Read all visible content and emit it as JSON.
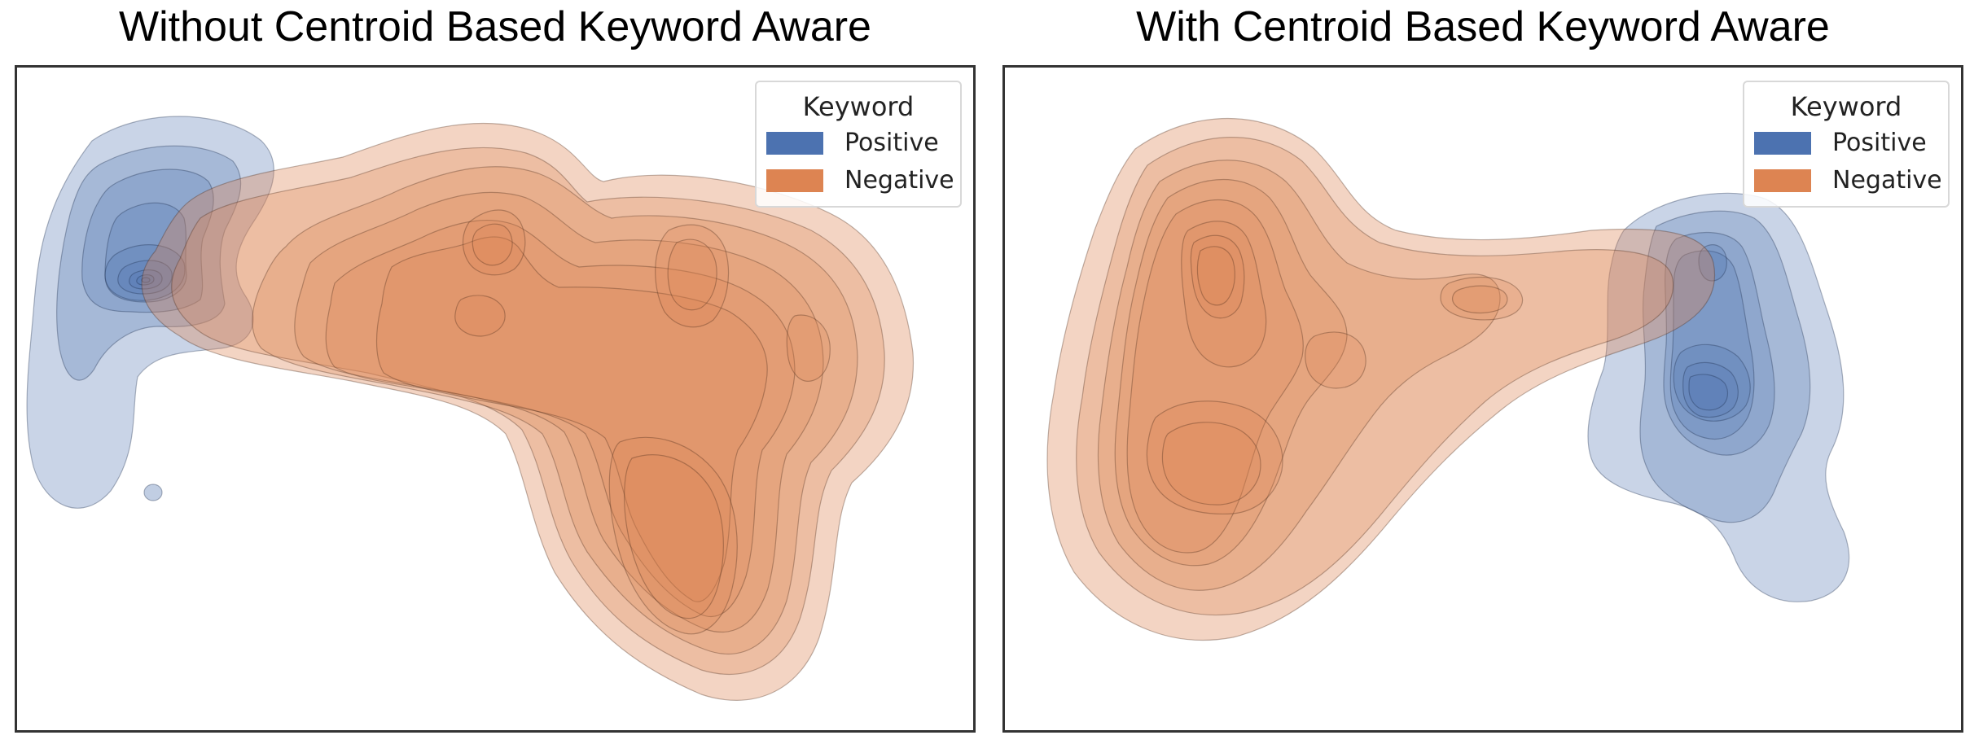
{
  "colors": {
    "positive": "#4c72b0",
    "negative": "#dd8452",
    "frame": "#333333"
  },
  "panels": [
    {
      "title": "Without Centroid Based Keyword Aware",
      "legend": {
        "title": "Keyword",
        "items": [
          "Positive",
          "Negative"
        ]
      }
    },
    {
      "title": "With Centroid Based Keyword Aware",
      "legend": {
        "title": "Keyword",
        "items": [
          "Positive",
          "Negative"
        ]
      }
    }
  ],
  "chart_data": [
    {
      "type": "kde-contour",
      "title": "Without Centroid Based Keyword Aware",
      "xlabel": "",
      "ylabel": "",
      "ticks": "none",
      "grid": false,
      "legend_title": "Keyword",
      "legend_position": "top-right",
      "series": [
        {
          "name": "Positive",
          "color": "#4c72b0",
          "levels": 9,
          "region": "left",
          "peaks": [
            {
              "x": -0.8,
              "y": 0.05,
              "weight": 1.0
            },
            {
              "x": -0.72,
              "y": 0.35,
              "weight": 0.45
            }
          ]
        },
        {
          "name": "Negative",
          "color": "#dd8452",
          "levels": 10,
          "region": "center-right",
          "peaks": [
            {
              "x": 0.45,
              "y": -0.45,
              "weight": 1.0
            },
            {
              "x": 0.35,
              "y": 0.25,
              "weight": 0.6
            },
            {
              "x": 0.7,
              "y": 0.1,
              "weight": 0.5
            },
            {
              "x": -0.05,
              "y": 0.4,
              "weight": 0.4
            }
          ]
        }
      ]
    },
    {
      "type": "kde-contour",
      "title": "With Centroid Based Keyword Aware",
      "xlabel": "",
      "ylabel": "",
      "ticks": "none",
      "grid": false,
      "legend_title": "Keyword",
      "legend_position": "top-right",
      "series": [
        {
          "name": "Positive",
          "color": "#4c72b0",
          "levels": 8,
          "region": "right",
          "peaks": [
            {
              "x": 0.75,
              "y": -0.15,
              "weight": 1.0
            },
            {
              "x": 0.7,
              "y": 0.25,
              "weight": 0.4
            }
          ]
        },
        {
          "name": "Negative",
          "color": "#dd8452",
          "levels": 10,
          "region": "left",
          "peaks": [
            {
              "x": -0.6,
              "y": 0.45,
              "weight": 0.9
            },
            {
              "x": -0.55,
              "y": -0.4,
              "weight": 1.0
            },
            {
              "x": 0.05,
              "y": 0.2,
              "weight": 0.45
            }
          ]
        }
      ]
    }
  ]
}
